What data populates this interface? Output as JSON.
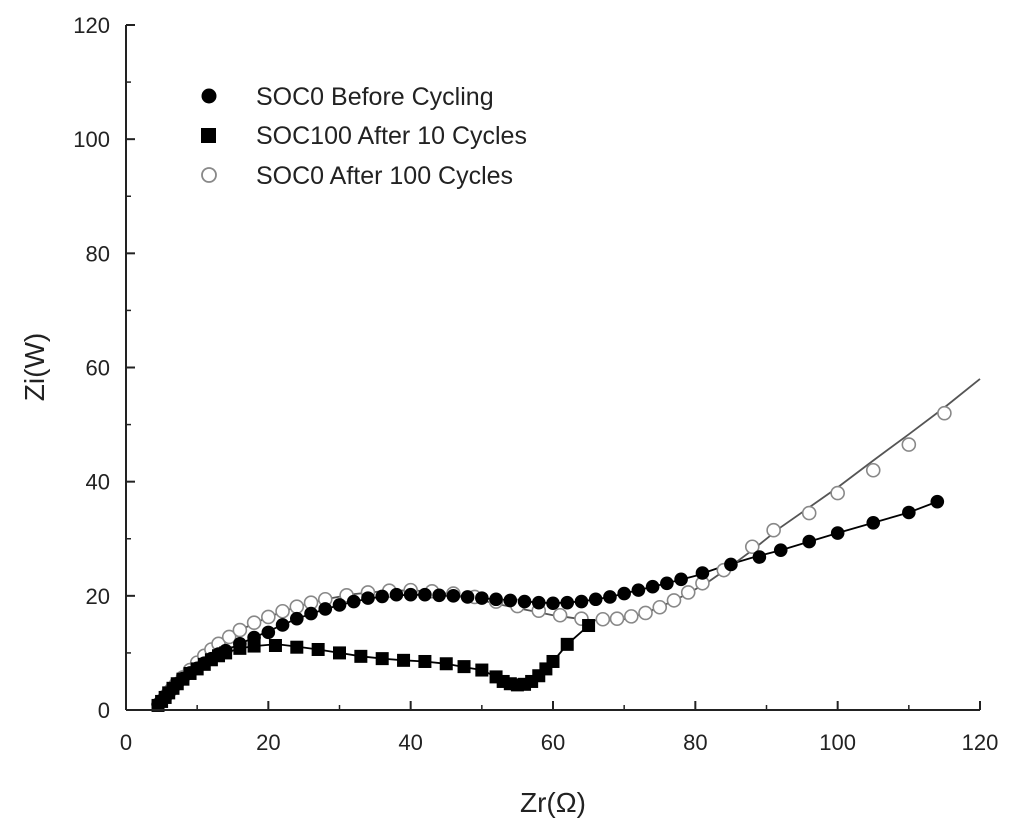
{
  "chart_data": {
    "type": "scatter",
    "title": "",
    "xlabel": "Zr(Ω)",
    "ylabel": "Zi(W)",
    "xlim": [
      0,
      120
    ],
    "ylim": [
      0,
      120
    ],
    "x_ticks": [
      "0",
      "20",
      "40",
      "60",
      "80",
      "100",
      "120"
    ],
    "y_ticks": [
      "0",
      "20",
      "40",
      "60",
      "80",
      "100",
      "120"
    ],
    "grid": false,
    "legend_position": "top-left",
    "series": [
      {
        "name": "SOC0 Before Cycling",
        "marker": "filled-circle",
        "color": "#000000",
        "x": [
          4.5,
          5,
          5.5,
          6,
          6.6,
          7.2,
          8,
          9,
          10,
          11,
          12,
          13,
          14,
          16,
          18,
          20,
          22,
          24,
          26,
          28,
          30,
          32,
          34,
          36,
          38,
          40,
          42,
          44,
          46,
          48,
          50,
          52,
          54,
          56,
          58,
          60,
          62,
          64,
          66,
          68,
          70,
          72,
          74,
          76,
          78,
          81,
          85,
          89,
          92,
          96,
          100,
          105,
          110,
          114
        ],
        "y": [
          1.0,
          1.6,
          2.3,
          3.0,
          3.8,
          4.6,
          5.5,
          6.5,
          7.3,
          8.2,
          9.0,
          9.8,
          10.4,
          11.6,
          12.7,
          13.6,
          14.9,
          16.0,
          16.9,
          17.7,
          18.4,
          19.0,
          19.6,
          19.9,
          20.2,
          20.2,
          20.2,
          20.1,
          20.0,
          19.8,
          19.6,
          19.4,
          19.2,
          19.0,
          18.8,
          18.7,
          18.8,
          19.0,
          19.4,
          19.8,
          20.4,
          21.0,
          21.6,
          22.2,
          22.9,
          24.0,
          25.5,
          26.8,
          28.0,
          29.5,
          31.0,
          32.8,
          34.6,
          36.5
        ]
      },
      {
        "name": "SOC100 After 10 Cycles",
        "marker": "filled-square",
        "color": "#000000",
        "x": [
          4.5,
          5,
          5.5,
          6,
          6.6,
          7.2,
          8,
          9,
          10,
          11,
          12,
          13,
          14,
          16,
          18,
          21,
          24,
          27,
          30,
          33,
          36,
          39,
          42,
          45,
          47.5,
          50,
          52,
          53,
          54,
          55,
          56,
          57,
          58,
          59,
          60,
          62,
          65
        ],
        "y": [
          0.8,
          1.5,
          2.2,
          3.0,
          3.8,
          4.6,
          5.4,
          6.4,
          7.2,
          8.0,
          8.8,
          9.5,
          10.0,
          10.8,
          11.2,
          11.3,
          11.0,
          10.6,
          10.0,
          9.4,
          9.0,
          8.7,
          8.5,
          8.1,
          7.6,
          7.0,
          5.8,
          5.0,
          4.6,
          4.4,
          4.5,
          5.0,
          6.0,
          7.2,
          8.5,
          11.5,
          14.8
        ]
      },
      {
        "name": "SOC0 After 100 Cycles",
        "marker": "open-circle",
        "color": "#888888",
        "x": [
          5,
          5.6,
          6.3,
          7,
          8,
          9,
          10,
          11,
          12,
          13,
          14.5,
          16,
          18,
          20,
          22,
          24,
          26,
          28,
          31,
          34,
          37,
          40,
          43,
          46,
          49,
          52,
          55,
          58,
          61,
          64,
          67,
          69,
          71,
          73,
          75,
          77,
          79,
          81,
          84,
          88,
          91,
          96,
          100,
          105,
          110,
          115
        ],
        "y": [
          1.6,
          2.5,
          3.5,
          4.5,
          5.7,
          7.0,
          8.3,
          9.5,
          10.6,
          11.6,
          12.8,
          14.0,
          15.3,
          16.3,
          17.3,
          18.1,
          18.8,
          19.4,
          20.1,
          20.6,
          20.9,
          21.0,
          20.8,
          20.4,
          19.8,
          19.0,
          18.2,
          17.4,
          16.6,
          16.0,
          15.9,
          16.0,
          16.4,
          17.0,
          18.0,
          19.2,
          20.6,
          22.2,
          24.5,
          28.6,
          31.5,
          34.5,
          38.0,
          42.0,
          46.5,
          52.0
        ]
      }
    ],
    "fit_lines": [
      {
        "color": "#000000",
        "x": [
          4.5,
          6,
          8,
          10,
          12,
          14,
          16,
          18,
          20,
          24,
          28,
          32,
          36,
          40,
          44,
          48,
          52,
          56,
          60,
          64,
          68,
          72,
          76,
          80,
          84,
          88,
          92,
          96,
          100,
          105,
          110,
          114
        ],
        "y": [
          1.0,
          3.0,
          5.5,
          7.3,
          9.0,
          10.4,
          11.6,
          12.7,
          13.8,
          16.0,
          17.7,
          19.0,
          19.9,
          20.2,
          20.1,
          19.8,
          19.4,
          19.0,
          18.7,
          19.0,
          19.8,
          21.0,
          22.2,
          23.5,
          25.2,
          26.7,
          28.0,
          29.5,
          31.0,
          32.8,
          34.6,
          36.5
        ]
      },
      {
        "color": "#000000",
        "x": [
          4.5,
          6,
          8,
          10,
          12,
          14,
          16,
          18,
          20,
          22,
          24,
          27,
          30,
          33,
          36,
          39,
          42,
          45,
          48,
          50,
          52,
          53,
          54,
          55,
          56,
          57,
          58,
          59,
          60,
          62,
          65
        ],
        "y": [
          0.8,
          3.0,
          5.4,
          7.2,
          8.8,
          10.0,
          10.8,
          11.2,
          11.4,
          11.4,
          11.1,
          10.6,
          10.0,
          9.4,
          9.0,
          8.7,
          8.5,
          8.1,
          7.4,
          7.0,
          5.8,
          5.0,
          4.6,
          4.4,
          4.5,
          5.0,
          6.0,
          7.2,
          8.5,
          11.5,
          14.8
        ]
      },
      {
        "color": "#555555",
        "x": [
          5,
          7,
          9,
          11,
          13,
          16,
          20,
          24,
          28,
          32,
          36,
          40,
          44,
          48,
          52,
          56,
          60,
          64,
          67,
          70,
          73,
          76,
          79,
          82,
          85,
          88,
          92,
          96,
          100,
          105,
          110,
          115,
          120
        ],
        "y": [
          1.6,
          4.5,
          7.0,
          9.5,
          11.6,
          14.0,
          16.3,
          18.1,
          19.4,
          20.3,
          20.8,
          21.0,
          20.6,
          19.8,
          18.6,
          17.6,
          16.6,
          15.9,
          15.6,
          15.9,
          17.0,
          18.6,
          20.4,
          22.6,
          25.2,
          28.0,
          32.0,
          35.5,
          39.0,
          43.7,
          48.3,
          53.0,
          58.0
        ]
      }
    ]
  }
}
